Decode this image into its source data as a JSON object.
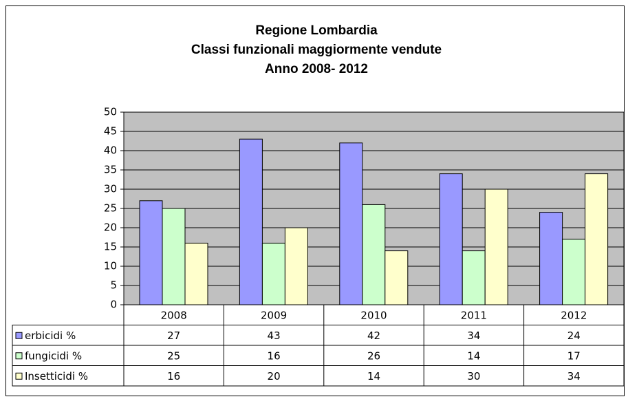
{
  "chart_data": {
    "type": "bar",
    "title": [
      "Regione Lombardia",
      "Classi funzionali maggiormente vendute",
      "Anno 2008- 2012"
    ],
    "categories": [
      "2008",
      "2009",
      "2010",
      "2011",
      "2012"
    ],
    "series": [
      {
        "name": "erbicidi %",
        "color": "#9999ff",
        "values": [
          27,
          43,
          42,
          34,
          24
        ]
      },
      {
        "name": "fungicidi %",
        "color": "#ccffcc",
        "values": [
          25,
          16,
          26,
          14,
          17
        ]
      },
      {
        "name": "Insetticidi %",
        "color": "#ffffcc",
        "values": [
          16,
          20,
          14,
          30,
          34
        ]
      }
    ],
    "ylim": [
      0,
      50
    ],
    "yticks": [
      0,
      5,
      10,
      15,
      20,
      25,
      30,
      35,
      40,
      45,
      50
    ],
    "grid": true,
    "plot_background": "#c0c0c0",
    "data_table": true
  }
}
